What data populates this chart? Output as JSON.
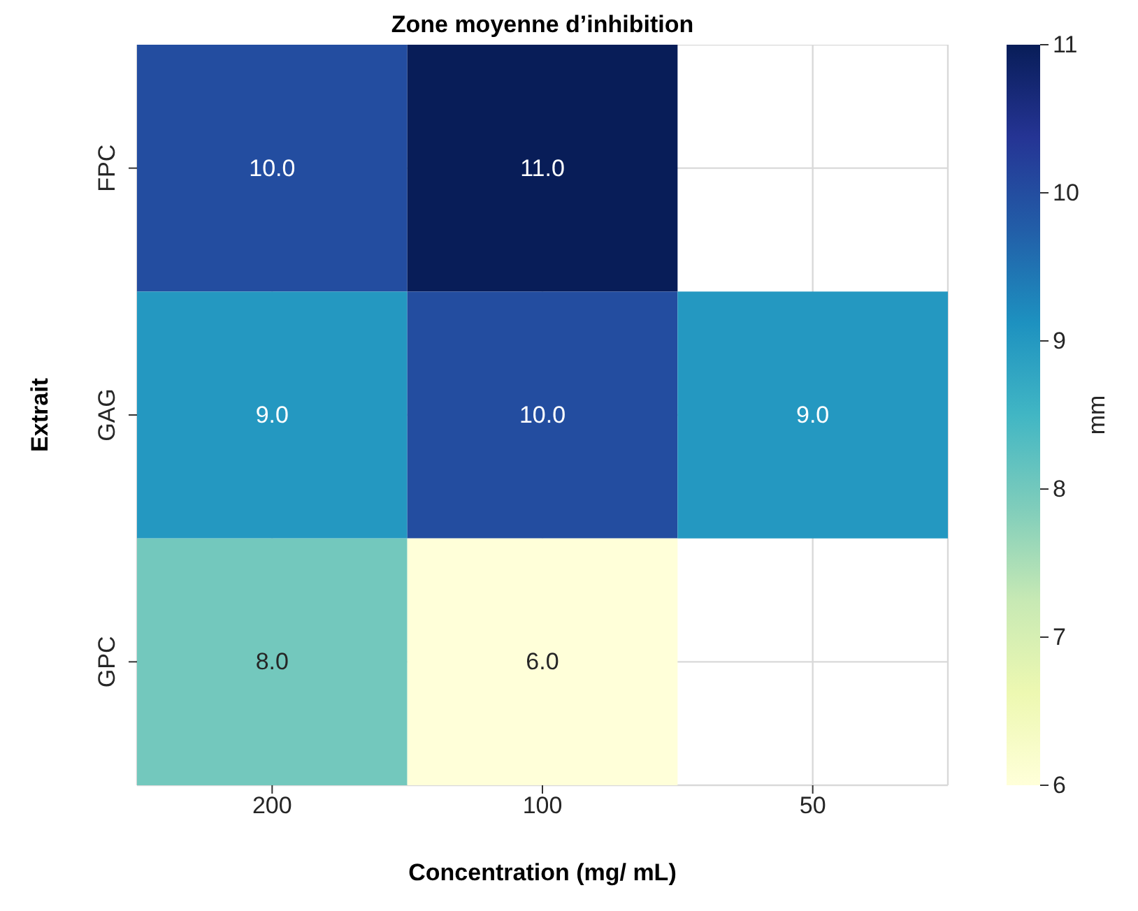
{
  "chart_data": {
    "type": "heatmap",
    "title": "Zone moyenne d’inhibition",
    "xlabel": "Concentration (mg/ mL)",
    "ylabel": "Extrait",
    "clabel": "mm",
    "categories": [
      "200",
      "100",
      "50"
    ],
    "y_categories": [
      "FPC",
      "GAG",
      "GPC"
    ],
    "cells": [
      [
        10.0,
        11.0,
        null
      ],
      [
        9.0,
        10.0,
        9.0
      ],
      [
        8.0,
        6.0,
        null
      ]
    ],
    "cell_labels": [
      [
        "10.0",
        "11.0",
        null
      ],
      [
        "9.0",
        "10.0",
        "9.0"
      ],
      [
        "8.0",
        "6.0",
        null
      ]
    ],
    "clim": [
      6,
      11
    ],
    "cticks": [
      6,
      7,
      8,
      9,
      10,
      11
    ],
    "grid": true
  }
}
